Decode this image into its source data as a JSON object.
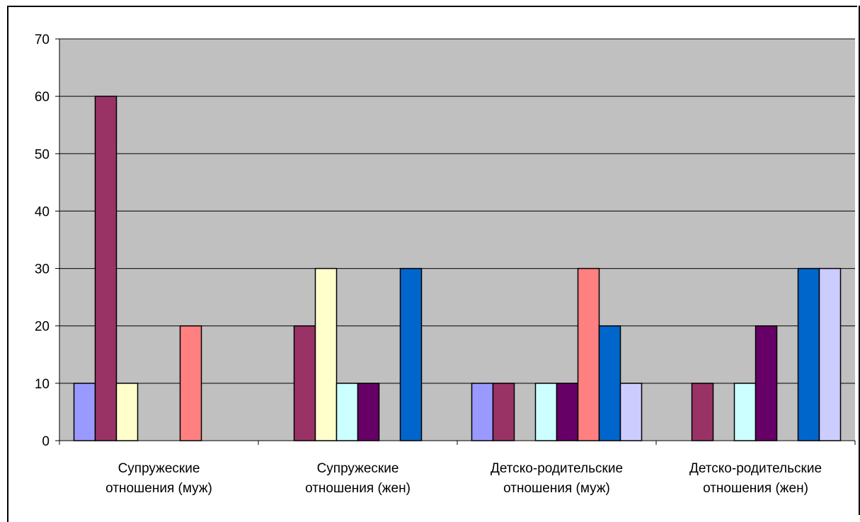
{
  "chart_data": {
    "type": "bar",
    "title": "",
    "xlabel": "",
    "ylabel": "",
    "ylim": [
      0,
      70
    ],
    "yticks": [
      0,
      10,
      20,
      30,
      40,
      50,
      60,
      70
    ],
    "grid": true,
    "legend": "none",
    "plot_background": "#c0c0c0",
    "categories": [
      [
        "Супружеские",
        "отношения (муж)"
      ],
      [
        "Супружеские",
        "отношения (жен)"
      ],
      [
        "Детско-родительские",
        "отношения (муж)"
      ],
      [
        "Детско-родительские",
        "отношения (жен)"
      ]
    ],
    "series": [
      {
        "color": "#9999ff",
        "values": [
          10,
          0,
          10,
          0
        ]
      },
      {
        "color": "#993366",
        "values": [
          60,
          20,
          10,
          10
        ]
      },
      {
        "color": "#ffffcc",
        "values": [
          10,
          30,
          0,
          0
        ]
      },
      {
        "color": "#ccffff",
        "values": [
          0,
          10,
          10,
          10
        ]
      },
      {
        "color": "#660066",
        "values": [
          0,
          10,
          10,
          20
        ]
      },
      {
        "color": "#ff8080",
        "values": [
          20,
          0,
          30,
          0
        ]
      },
      {
        "color": "#0066cc",
        "values": [
          0,
          30,
          20,
          30
        ]
      },
      {
        "color": "#ccccff",
        "values": [
          0,
          0,
          10,
          30
        ]
      }
    ]
  }
}
